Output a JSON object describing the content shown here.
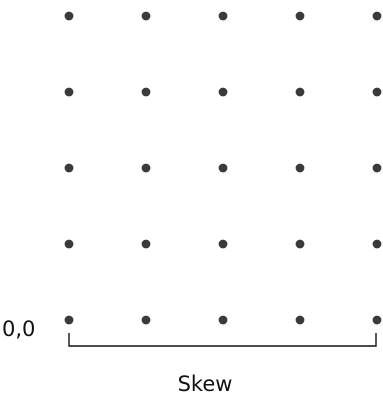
{
  "grid": {
    "columns": 5,
    "rows": 5,
    "dot_color": "#3a3a3a"
  },
  "origin_label": "0,0",
  "bracket": {
    "label": "Skew",
    "color": "#111111"
  }
}
